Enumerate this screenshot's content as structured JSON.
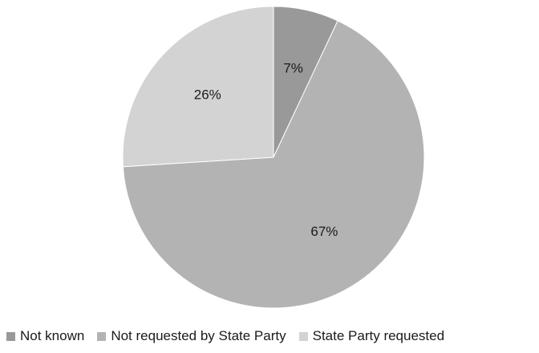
{
  "chart_data": {
    "type": "pie",
    "title": "",
    "legend_position": "bottom",
    "slices": [
      {
        "label": "Not known",
        "value": 7,
        "display": "7%",
        "color": "#999999"
      },
      {
        "label": "Not requested by State Party",
        "value": 67,
        "display": "67%",
        "color": "#b3b3b3"
      },
      {
        "label": "State Party requested",
        "value": 26,
        "display": "26%",
        "color": "#d3d3d3"
      }
    ]
  }
}
